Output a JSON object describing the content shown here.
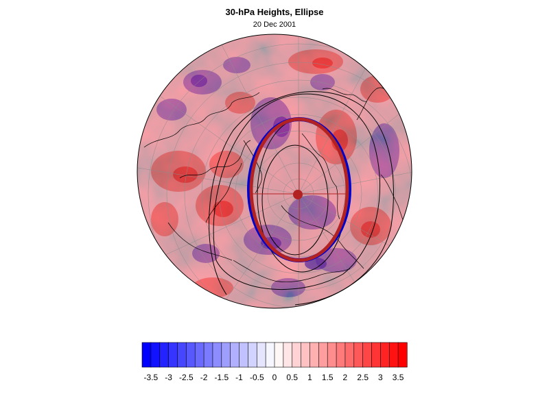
{
  "title": "30-hPa Heights, Ellipse",
  "subtitle": "20 Dec 2001",
  "colors": {
    "negative_max": "#0000ff",
    "neutral": "#ffffff",
    "positive_max": "#ff0000",
    "ellipse_outer": "#0000ff",
    "ellipse_inner": "#b22222",
    "height_contours": "#000000"
  },
  "colorbar": {
    "min": -3.75,
    "max": 3.75,
    "step": 0.25,
    "tick_labels": [
      "-3.5",
      "-3",
      "-2.5",
      "-2",
      "-1.5",
      "-1",
      "-0.5",
      "0",
      "0.5",
      "1",
      "1.5",
      "2",
      "2.5",
      "3",
      "3.5"
    ],
    "tick_values": [
      -3.5,
      -3,
      -2.5,
      -2,
      -1.5,
      -1,
      -0.5,
      0,
      0.5,
      1,
      1.5,
      2,
      2.5,
      3,
      3.5
    ]
  }
}
